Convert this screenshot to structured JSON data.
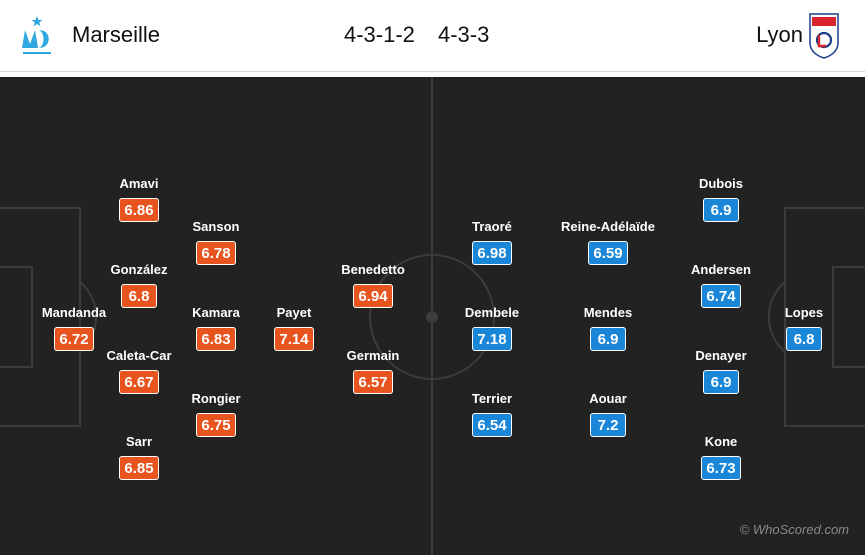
{
  "header": {
    "home_team": "Marseille",
    "away_team": "Lyon",
    "home_formation": "4-3-1-2",
    "away_formation": "4-3-3",
    "home_logo_icon": "marseille-crest-icon",
    "away_logo_icon": "lyon-crest-icon"
  },
  "colors": {
    "pitch": "#222222",
    "pitch_lines": "#3a3a3a",
    "home_rating": "#e8541e",
    "away_rating": "#1a86d8"
  },
  "home_players": [
    {
      "name": "Mandanda",
      "rating": "6.72"
    },
    {
      "name": "Amavi",
      "rating": "6.86"
    },
    {
      "name": "González",
      "rating": "6.8"
    },
    {
      "name": "Caleta-Car",
      "rating": "6.67"
    },
    {
      "name": "Sarr",
      "rating": "6.85"
    },
    {
      "name": "Sanson",
      "rating": "6.78"
    },
    {
      "name": "Kamara",
      "rating": "6.83"
    },
    {
      "name": "Rongier",
      "rating": "6.75"
    },
    {
      "name": "Payet",
      "rating": "7.14"
    },
    {
      "name": "Benedetto",
      "rating": "6.94"
    },
    {
      "name": "Germain",
      "rating": "6.57"
    }
  ],
  "away_players": [
    {
      "name": "Lopes",
      "rating": "6.8"
    },
    {
      "name": "Dubois",
      "rating": "6.9"
    },
    {
      "name": "Andersen",
      "rating": "6.74"
    },
    {
      "name": "Denayer",
      "rating": "6.9"
    },
    {
      "name": "Kone",
      "rating": "6.73"
    },
    {
      "name": "Reine-Adélaïde",
      "rating": "6.59"
    },
    {
      "name": "Mendes",
      "rating": "6.9"
    },
    {
      "name": "Aouar",
      "rating": "7.2"
    },
    {
      "name": "Traoré",
      "rating": "6.98"
    },
    {
      "name": "Dembele",
      "rating": "7.18"
    },
    {
      "name": "Terrier",
      "rating": "6.54"
    }
  ],
  "footer": {
    "watermark": "© WhoScored.com"
  }
}
